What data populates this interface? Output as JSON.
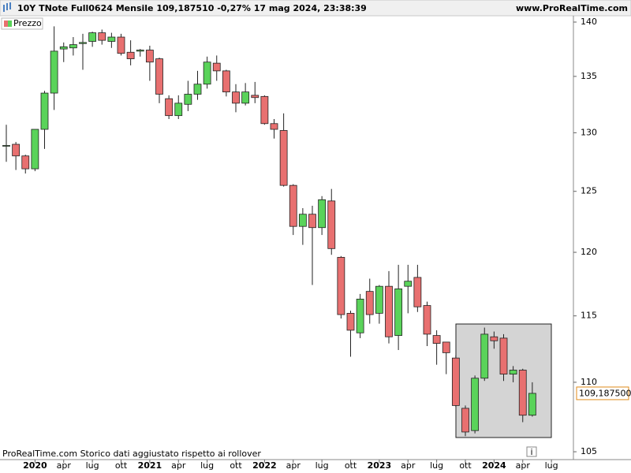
{
  "chart_data": {
    "type": "candlestick",
    "title": "10Y TNote Full0624 Mensile 109,187510 -0,27% 17 mag 2024, 23:38:39",
    "site": "www.ProRealTime.com",
    "footer": "ProRealTime.com  Storico dati aggiustato rispetto ai rollover",
    "series_name": "Prezzo",
    "up_color": "#5ad35a",
    "down_color": "#e87070",
    "log_scale": true,
    "grid": false,
    "ylim": [
      104.45,
      140.74
    ],
    "yticks": [
      105,
      110,
      115,
      120,
      125,
      130,
      135,
      140
    ],
    "last_price": {
      "value": 109.1875,
      "label": "109,187500"
    },
    "categories": [
      null,
      null,
      null,
      "2020",
      null,
      null,
      "apr",
      null,
      null,
      "lug",
      null,
      null,
      "ott",
      null,
      null,
      "2021",
      null,
      null,
      "apr",
      null,
      null,
      "lug",
      null,
      null,
      "ott",
      null,
      null,
      "2022",
      null,
      null,
      "apr",
      null,
      null,
      "lug",
      null,
      null,
      "ott",
      null,
      null,
      "2023",
      null,
      null,
      "apr",
      null,
      null,
      "lug",
      null,
      null,
      "ott",
      null,
      null,
      "2024",
      null,
      null,
      "apr",
      null,
      null,
      "lug"
    ],
    "open": [
      128.9,
      129.0,
      128.0,
      126.9,
      130.3,
      133.5,
      137.5,
      137.6,
      138.0,
      138.2,
      139.0,
      138.2,
      138.6,
      137.2,
      137.3,
      137.4,
      136.6,
      133.0,
      131.5,
      132.5,
      133.4,
      134.3,
      136.2,
      135.5,
      133.6,
      132.6,
      133.3,
      133.2,
      130.8,
      130.2,
      125.5,
      122.1,
      123.1,
      122.0,
      124.2,
      119.6,
      115.2,
      113.7,
      116.9,
      115.2,
      117.3,
      113.5,
      117.3,
      118.0,
      115.8,
      113.5,
      113.0,
      111.8,
      108.1,
      106.5,
      110.3,
      113.4,
      113.3,
      110.6,
      110.9,
      107.6,
      null,
      null
    ],
    "high": [
      130.7,
      129.2,
      128.1,
      130.3,
      133.7,
      139.6,
      138.1,
      138.6,
      138.9,
      139.1,
      139.3,
      139.0,
      138.9,
      138.3,
      137.5,
      137.8,
      136.7,
      133.3,
      133.3,
      134.6,
      135.5,
      136.8,
      136.9,
      135.6,
      134.3,
      134.4,
      134.5,
      133.3,
      131.2,
      131.7,
      125.6,
      123.6,
      123.8,
      124.6,
      125.2,
      119.7,
      115.4,
      116.7,
      117.9,
      117.4,
      118.5,
      119.0,
      119.0,
      119.0,
      116.1,
      113.9,
      113.0,
      112.0,
      108.3,
      110.5,
      114.1,
      113.8,
      113.6,
      111.2,
      111.0,
      110.0,
      null,
      null
    ],
    "low": [
      127.5,
      126.8,
      126.5,
      126.7,
      128.6,
      132.0,
      136.3,
      136.9,
      135.6,
      137.7,
      137.9,
      137.6,
      136.9,
      136.0,
      136.8,
      134.6,
      132.6,
      131.2,
      131.2,
      131.9,
      132.9,
      133.9,
      134.6,
      133.2,
      131.8,
      132.4,
      132.6,
      130.7,
      129.5,
      125.4,
      121.4,
      120.6,
      117.4,
      121.4,
      119.8,
      114.8,
      111.9,
      113.3,
      114.4,
      114.4,
      112.9,
      112.4,
      115.2,
      115.3,
      112.7,
      111.3,
      110.6,
      108.2,
      106.1,
      106.3,
      110.1,
      112.5,
      110.1,
      110.0,
      107.1,
      107.5,
      null,
      null
    ],
    "close": [
      128.9,
      128.0,
      126.9,
      130.3,
      133.5,
      137.3,
      137.7,
      137.9,
      138.1,
      139.0,
      138.3,
      138.6,
      137.1,
      136.6,
      137.4,
      136.3,
      133.4,
      131.5,
      132.6,
      133.4,
      134.3,
      136.3,
      135.5,
      133.6,
      132.6,
      133.6,
      133.1,
      130.8,
      130.3,
      125.5,
      122.1,
      123.1,
      122.0,
      124.3,
      120.3,
      115.1,
      113.9,
      116.3,
      115.1,
      117.3,
      113.4,
      117.1,
      117.7,
      115.7,
      113.6,
      112.9,
      112.2,
      108.3,
      106.4,
      110.3,
      113.6,
      113.1,
      110.6,
      110.9,
      107.6,
      109.1875,
      null,
      null
    ]
  }
}
